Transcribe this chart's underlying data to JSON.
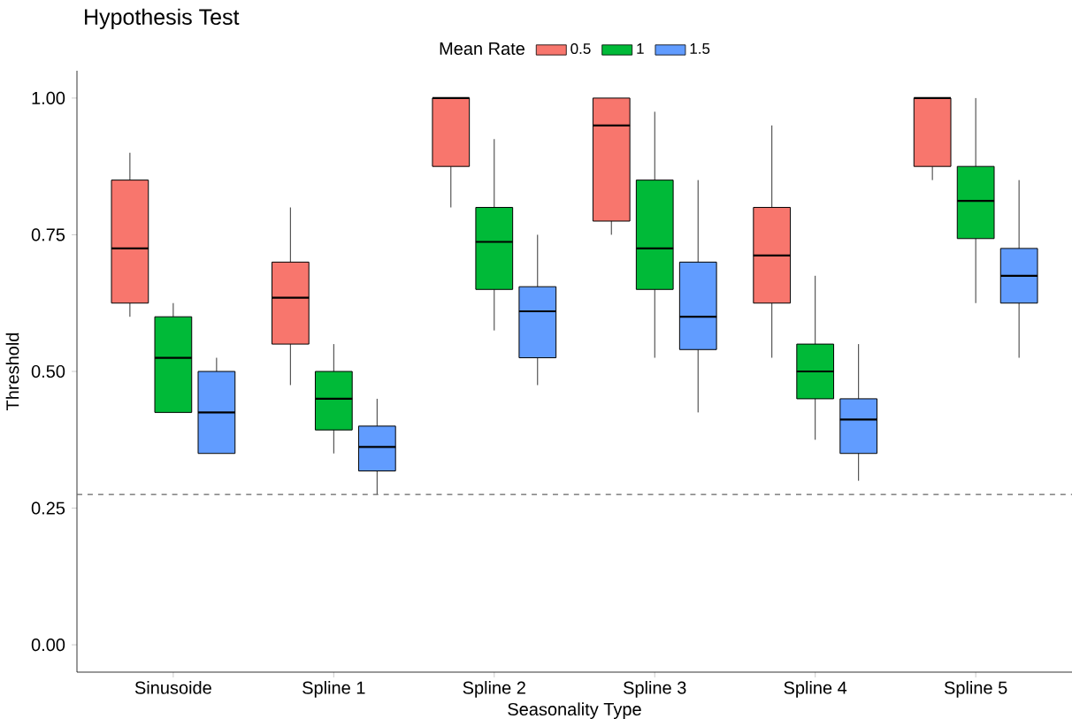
{
  "chart_data": {
    "type": "box",
    "title": "Hypothesis Test",
    "xlabel": "Seasonality Type",
    "ylabel": "Threshold",
    "legend_title": "Mean Rate",
    "legend": "top",
    "categories": [
      "Sinusoide",
      "Spline 1",
      "Spline 2",
      "Spline 3",
      "Spline 4",
      "Spline 5"
    ],
    "ylim": [
      -0.05,
      1.05
    ],
    "yticks": [
      {
        "value": 0,
        "label": "0.00"
      },
      {
        "value": 0.25,
        "label": "0.25"
      },
      {
        "value": 0.5,
        "label": "0.50"
      },
      {
        "value": 0.75,
        "label": "0.75"
      },
      {
        "value": 1,
        "label": "1.00"
      }
    ],
    "series": [
      {
        "name": "0.5",
        "color": "#f8766d",
        "boxes": [
          {
            "low": 0.6,
            "q1": 0.625,
            "median": 0.725,
            "q3": 0.85,
            "high": 0.9
          },
          {
            "low": 0.475,
            "q1": 0.55,
            "median": 0.635,
            "q3": 0.7,
            "high": 0.8
          },
          {
            "low": 0.8,
            "q1": 0.875,
            "median": 1.0,
            "q3": 1.0,
            "high": 1.0
          },
          {
            "low": 0.75,
            "q1": 0.775,
            "median": 0.95,
            "q3": 1.0,
            "high": 1.0
          },
          {
            "low": 0.525,
            "q1": 0.625,
            "median": 0.712,
            "q3": 0.8,
            "high": 0.95
          },
          {
            "low": 0.85,
            "q1": 0.875,
            "median": 1.0,
            "q3": 1.0,
            "high": 1.0
          }
        ]
      },
      {
        "name": "1",
        "color": "#00ba38",
        "boxes": [
          {
            "low": 0.425,
            "q1": 0.425,
            "median": 0.525,
            "q3": 0.6,
            "high": 0.625
          },
          {
            "low": 0.35,
            "q1": 0.393,
            "median": 0.45,
            "q3": 0.5,
            "high": 0.55
          },
          {
            "low": 0.575,
            "q1": 0.65,
            "median": 0.737,
            "q3": 0.8,
            "high": 0.925
          },
          {
            "low": 0.525,
            "q1": 0.65,
            "median": 0.725,
            "q3": 0.85,
            "high": 0.975
          },
          {
            "low": 0.375,
            "q1": 0.45,
            "median": 0.5,
            "q3": 0.55,
            "high": 0.675
          },
          {
            "low": 0.625,
            "q1": 0.743,
            "median": 0.812,
            "q3": 0.875,
            "high": 1.0
          }
        ]
      },
      {
        "name": "1.5",
        "color": "#619cff",
        "boxes": [
          {
            "low": 0.35,
            "q1": 0.35,
            "median": 0.425,
            "q3": 0.5,
            "high": 0.525
          },
          {
            "low": 0.275,
            "q1": 0.318,
            "median": 0.362,
            "q3": 0.4,
            "high": 0.45
          },
          {
            "low": 0.475,
            "q1": 0.525,
            "median": 0.61,
            "q3": 0.655,
            "high": 0.75
          },
          {
            "low": 0.425,
            "q1": 0.54,
            "median": 0.6,
            "q3": 0.7,
            "high": 0.85
          },
          {
            "low": 0.3,
            "q1": 0.35,
            "median": 0.412,
            "q3": 0.45,
            "high": 0.55
          },
          {
            "low": 0.525,
            "q1": 0.625,
            "median": 0.675,
            "q3": 0.725,
            "high": 0.85
          }
        ]
      }
    ],
    "ref_lines": [
      {
        "axis": "y",
        "value": 0.275,
        "line_style": "dashed",
        "color": "#666666"
      }
    ]
  }
}
